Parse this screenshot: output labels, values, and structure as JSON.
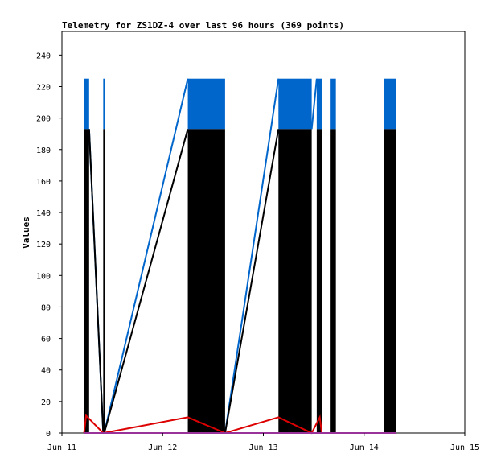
{
  "chart_data": {
    "type": "line",
    "title": "Telemetry for ZS1DZ-4 over last 96 hours (369 points)",
    "xlabel": "",
    "ylabel": "Values",
    "x_unit": "days",
    "x_ticks": [
      "Jun 11",
      "Jun 12",
      "Jun 13",
      "Jun 14",
      "Jun 15"
    ],
    "x_tick_values": [
      11,
      12,
      13,
      14,
      15
    ],
    "xlim": [
      11,
      15
    ],
    "ylim": [
      0,
      255
    ],
    "y_ticks": [
      0,
      20,
      40,
      60,
      80,
      100,
      120,
      140,
      160,
      180,
      200,
      220,
      240
    ],
    "grid": false,
    "legend": "none",
    "series": [
      {
        "color": "#0066cc",
        "style": "oscillating",
        "segments": [
          {
            "x": [
              11.22,
              11.27
            ],
            "y": [
              193,
              225
            ]
          },
          {
            "x": [
              11.41,
              11.42
            ],
            "y": [
              193,
              225
            ]
          },
          {
            "x": [
              12.25,
              12.62
            ],
            "y": [
              193,
              225
            ]
          },
          {
            "x": [
              12.33,
              12.34
            ],
            "y": [
              97,
              112
            ]
          },
          {
            "x": [
              12.46,
              12.47
            ],
            "y": [
              97,
              112
            ]
          },
          {
            "x": [
              13.15,
              13.48
            ],
            "y": [
              193,
              225
            ]
          },
          {
            "x": [
              13.23,
              13.24
            ],
            "y": [
              97,
              112
            ]
          },
          {
            "x": [
              13.39,
              13.4
            ],
            "y": [
              30,
              112
            ]
          },
          {
            "x": [
              13.53,
              13.58
            ],
            "y": [
              193,
              225
            ]
          },
          {
            "x": [
              13.66,
              13.72
            ],
            "y": [
              193,
              225
            ]
          },
          {
            "x": [
              14.2,
              14.32
            ],
            "y": [
              193,
              225
            ]
          }
        ],
        "connectors": [
          {
            "x": [
              11.27,
              11.41
            ],
            "y": [
              193,
              0
            ]
          },
          {
            "x": [
              11.42,
              12.25
            ],
            "y": [
              0,
              225
            ]
          },
          {
            "x": [
              12.62,
              13.15
            ],
            "y": [
              0,
              225
            ]
          },
          {
            "x": [
              13.48,
              13.53
            ],
            "y": [
              193,
              225
            ]
          }
        ]
      },
      {
        "color": "#000000",
        "style": "oscillating",
        "segments": [
          {
            "x": [
              11.22,
              11.27
            ],
            "y": [
              0,
              193
            ]
          },
          {
            "x": [
              11.41,
              11.42
            ],
            "y": [
              0,
              193
            ]
          },
          {
            "x": [
              12.25,
              12.62
            ],
            "y": [
              0,
              193
            ]
          },
          {
            "x": [
              13.15,
              13.48
            ],
            "y": [
              0,
              193
            ]
          },
          {
            "x": [
              13.53,
              13.58
            ],
            "y": [
              0,
              193
            ]
          },
          {
            "x": [
              13.66,
              13.72
            ],
            "y": [
              0,
              193
            ]
          },
          {
            "x": [
              14.2,
              14.32
            ],
            "y": [
              0,
              193
            ]
          }
        ],
        "connectors": [
          {
            "x": [
              11.27,
              11.41
            ],
            "y": [
              193,
              0
            ]
          },
          {
            "x": [
              11.42,
              12.25
            ],
            "y": [
              0,
              193
            ]
          },
          {
            "x": [
              12.62,
              13.15
            ],
            "y": [
              0,
              193
            ]
          },
          {
            "x": [
              13.72,
              14.2
            ],
            "y": [
              0,
              0
            ]
          }
        ]
      },
      {
        "color": "#dd0000",
        "style": "line",
        "x": [
          11.22,
          11.24,
          11.41,
          12.25,
          12.62,
          13.15,
          13.48,
          13.56,
          13.58
        ],
        "y": [
          0,
          11,
          0,
          10,
          0,
          10,
          0,
          10,
          0
        ]
      },
      {
        "color": "#993399",
        "style": "line",
        "x": [
          11.22,
          14.32
        ],
        "y": [
          0,
          0
        ]
      }
    ]
  }
}
